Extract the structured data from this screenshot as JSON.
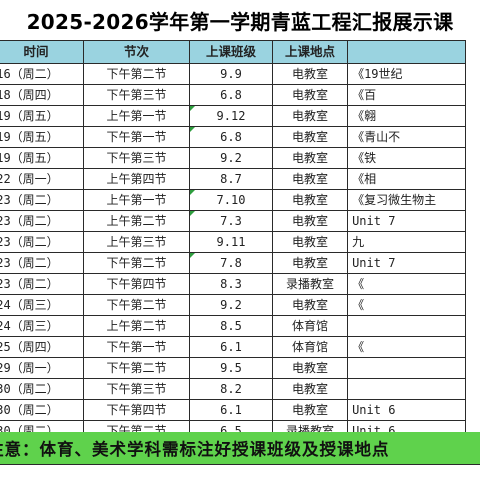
{
  "title": "2025-2026学年第一学期青蓝工程汇报展示课",
  "headers": {
    "date": "时间",
    "period": "节次",
    "class": "上课班级",
    "place": "上课地点",
    "topic": ""
  },
  "rows": [
    {
      "date": ".16（周二）",
      "period": "下午第二节",
      "class": "9.9",
      "place": "电教室",
      "topic": "《19世纪"
    },
    {
      "date": ".18（周四）",
      "period": "下午第三节",
      "class": "6.8",
      "place": "电教室",
      "topic": "《百"
    },
    {
      "date": ".19（周五）",
      "period": "上午第一节",
      "class": "9.12",
      "place": "电教室",
      "topic": "《翱"
    },
    {
      "date": ".19（周五）",
      "period": "下午第一节",
      "class": "6.8",
      "place": "电教室",
      "topic": "《青山不"
    },
    {
      "date": ".19（周五）",
      "period": "下午第三节",
      "class": "9.2",
      "place": "电教室",
      "topic": "《铁"
    },
    {
      "date": ".22（周一）",
      "period": "上午第四节",
      "class": "8.7",
      "place": "电教室",
      "topic": "《相"
    },
    {
      "date": ".23（周二）",
      "period": "上午第一节",
      "class": "7.10",
      "place": "电教室",
      "topic": "《复习微生物主"
    },
    {
      "date": ".23（周二）",
      "period": "上午第二节",
      "class": "7.3",
      "place": "电教室",
      "topic": "Unit 7"
    },
    {
      "date": ".23（周二）",
      "period": "上午第三节",
      "class": "9.11",
      "place": "电教室",
      "topic": "九"
    },
    {
      "date": ".23（周二）",
      "period": "下午第二节",
      "class": "7.8",
      "place": "电教室",
      "topic": "Unit 7"
    },
    {
      "date": ".23（周二）",
      "period": "下午第四节",
      "class": "8.3",
      "place": "录播教室",
      "topic": "《"
    },
    {
      "date": ".24（周三）",
      "period": "下午第二节",
      "class": "9.2",
      "place": "电教室",
      "topic": "《"
    },
    {
      "date": ".24（周三）",
      "period": "上午第二节",
      "class": "8.5",
      "place": "体育馆",
      "topic": ""
    },
    {
      "date": ".25（周四）",
      "period": "下午第一节",
      "class": "6.1",
      "place": "体育馆",
      "topic": "《"
    },
    {
      "date": ".29（周一）",
      "period": "下午第二节",
      "class": "9.5",
      "place": "电教室",
      "topic": ""
    },
    {
      "date": ".30（周二）",
      "period": "下午第三节",
      "class": "8.2",
      "place": "电教室",
      "topic": ""
    },
    {
      "date": ".30（周二）",
      "period": "下午第四节",
      "class": "6.1",
      "place": "电教室",
      "topic": "Unit 6"
    },
    {
      "date": ".30（周二）",
      "period": "下午第二节",
      "class": "6.5",
      "place": "录播教室",
      "topic": "Unit 6"
    }
  ],
  "note": "注意：体育、美术学科需标注好授课班级及授课地点",
  "colors": {
    "header_bg": "#9ad3e0",
    "note_bg": "#5fd24c",
    "flag": "#2e9e3e"
  },
  "flagged_class_rows": [
    2,
    3,
    6,
    7,
    9
  ]
}
